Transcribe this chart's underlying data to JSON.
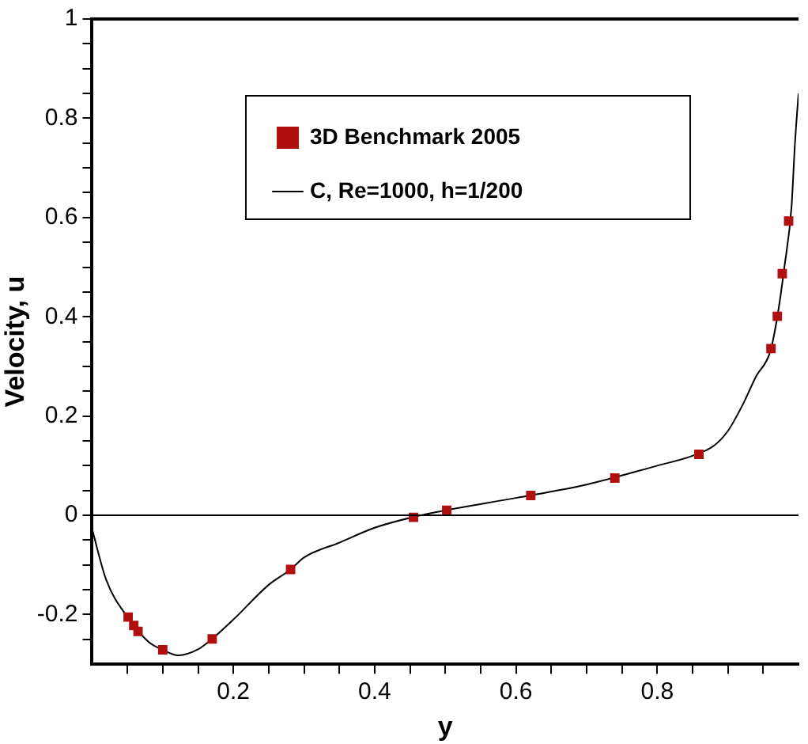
{
  "chart_data": {
    "type": "scatter",
    "xlabel": "y",
    "ylabel": "Velocity, u",
    "xlim": [
      0,
      1
    ],
    "ylim": [
      -0.3,
      1
    ],
    "xticks": [
      {
        "value": 0.05,
        "label": null
      },
      {
        "value": 0.1,
        "label": null
      },
      {
        "value": 0.15,
        "label": null
      },
      0.2,
      {
        "value": 0.25,
        "label": null
      },
      {
        "value": 0.3,
        "label": null
      },
      {
        "value": 0.35,
        "label": null
      },
      0.4,
      {
        "value": 0.45,
        "label": null
      },
      {
        "value": 0.5,
        "label": null
      },
      {
        "value": 0.55,
        "label": null
      },
      0.6,
      {
        "value": 0.65,
        "label": null
      },
      {
        "value": 0.7,
        "label": null
      },
      {
        "value": 0.75,
        "label": null
      },
      0.8,
      {
        "value": 0.85,
        "label": null
      },
      {
        "value": 0.9,
        "label": null
      },
      {
        "value": 0.95,
        "label": null
      }
    ],
    "yticks": [
      {
        "value": -0.25,
        "label": null
      },
      -0.2,
      {
        "value": -0.15,
        "label": null
      },
      {
        "value": -0.1,
        "label": null
      },
      {
        "value": -0.05,
        "label": null
      },
      0,
      {
        "value": 0.05,
        "label": null
      },
      {
        "value": 0.1,
        "label": null
      },
      {
        "value": 0.15,
        "label": null
      },
      0.2,
      {
        "value": 0.25,
        "label": null
      },
      {
        "value": 0.3,
        "label": null
      },
      {
        "value": 0.35,
        "label": null
      },
      0.4,
      {
        "value": 0.45,
        "label": null
      },
      {
        "value": 0.5,
        "label": null
      },
      {
        "value": 0.55,
        "label": null
      },
      0.6,
      {
        "value": 0.65,
        "label": null
      },
      {
        "value": 0.7,
        "label": null
      },
      {
        "value": 0.75,
        "label": null
      },
      0.8,
      {
        "value": 0.85,
        "label": null
      },
      {
        "value": 0.9,
        "label": null
      },
      {
        "value": 0.95,
        "label": null
      },
      1
    ],
    "legend": "top",
    "ref_lines": [
      {
        "axis": "y",
        "value": 0,
        "color": "#000000"
      }
    ],
    "series": [
      {
        "name": "3D Benchmark 2005",
        "marker": "square",
        "color": "#b01010",
        "x": [
          0.051,
          0.059,
          0.065,
          0.1,
          0.17,
          0.281,
          0.455,
          0.502,
          0.621,
          0.74,
          0.859,
          0.961,
          0.97,
          0.977,
          0.986
        ],
        "values": [
          -0.205,
          -0.222,
          -0.234,
          -0.271,
          -0.249,
          -0.109,
          -0.004,
          0.01,
          0.04,
          0.075,
          0.123,
          0.336,
          0.401,
          0.487,
          0.593
        ]
      },
      {
        "name": "C, Re=1000, h=1/200",
        "type": "line",
        "marker": "none",
        "line_style": "solid",
        "color": "#000000",
        "x": [
          0,
          0.02,
          0.05,
          0.08,
          0.1,
          0.122,
          0.15,
          0.17,
          0.2,
          0.25,
          0.281,
          0.3,
          0.35,
          0.4,
          0.45,
          0.5,
          0.6,
          0.7,
          0.8,
          0.85,
          0.88,
          0.9,
          0.92,
          0.94,
          0.96,
          0.97,
          0.98,
          0.99,
          0.995,
          1
        ],
        "values": [
          -0.028,
          -0.13,
          -0.205,
          -0.255,
          -0.271,
          -0.282,
          -0.27,
          -0.249,
          -0.21,
          -0.14,
          -0.109,
          -0.085,
          -0.055,
          -0.025,
          -0.005,
          0.01,
          0.035,
          0.062,
          0.1,
          0.12,
          0.14,
          0.17,
          0.22,
          0.28,
          0.33,
          0.4,
          0.5,
          0.62,
          0.75,
          0.85
        ]
      }
    ]
  }
}
